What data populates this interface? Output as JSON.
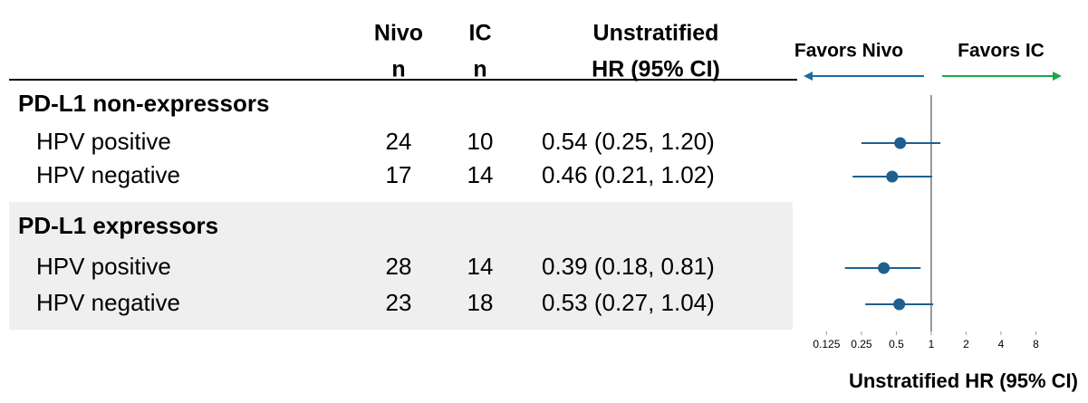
{
  "chart_data": {
    "type": "forest",
    "columns": [
      [
        "Nivo",
        "n"
      ],
      [
        "IC",
        "n"
      ],
      [
        "Unstratified",
        "HR (95% CI)"
      ]
    ],
    "favors_left": "Favors Nivo",
    "favors_right": "Favors IC",
    "favors_left_color": "#1b6aa0",
    "favors_right_color": "#1aa64b",
    "x_label": "Unstratified HR (95% CI)",
    "log_scale": true,
    "xlim": [
      0.1,
      9
    ],
    "xticks": [
      0.125,
      0.25,
      0.5,
      1,
      2,
      4,
      8
    ],
    "reference": 1,
    "color": "#1f5f8f",
    "groups": [
      {
        "name": "PD-L1 non-expressors",
        "shaded": false,
        "rows": [
          {
            "label": "HPV positive",
            "nivo_n": 24,
            "ic_n": 10,
            "hr": 0.54,
            "ci_low": 0.25,
            "ci_high": 1.2,
            "hr_text": "0.54 (0.25, 1.20)"
          },
          {
            "label": "HPV negative",
            "nivo_n": 17,
            "ic_n": 14,
            "hr": 0.46,
            "ci_low": 0.21,
            "ci_high": 1.02,
            "hr_text": "0.46 (0.21, 1.02)"
          }
        ]
      },
      {
        "name": "PD-L1 expressors",
        "shaded": true,
        "rows": [
          {
            "label": "HPV positive",
            "nivo_n": 28,
            "ic_n": 14,
            "hr": 0.39,
            "ci_low": 0.18,
            "ci_high": 0.81,
            "hr_text": "0.39 (0.18, 0.81)"
          },
          {
            "label": "HPV negative",
            "nivo_n": 23,
            "ic_n": 18,
            "hr": 0.53,
            "ci_low": 0.27,
            "ci_high": 1.04,
            "hr_text": "0.53 (0.27, 1.04)"
          }
        ]
      }
    ]
  }
}
